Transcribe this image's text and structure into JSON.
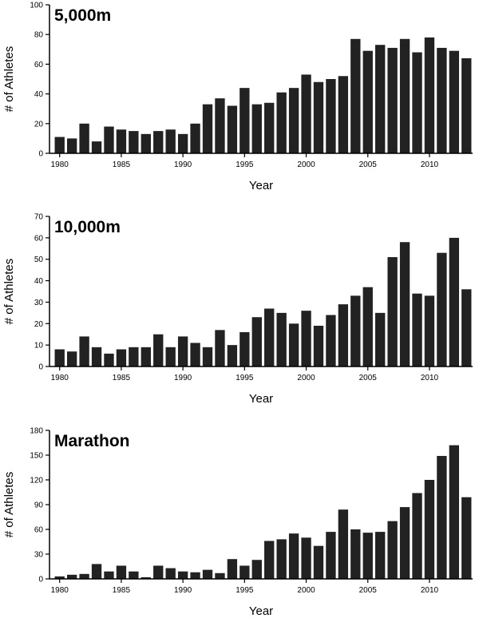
{
  "colors": {
    "bar": "#222222",
    "axis": "#000000",
    "background": "#ffffff"
  },
  "chart_data": [
    {
      "type": "bar",
      "title": "5,000m",
      "xlabel": "Year",
      "ylabel": "# of Athletes",
      "ylim": [
        0,
        100
      ],
      "yticks": [
        0,
        20,
        40,
        60,
        80,
        100
      ],
      "xticks": [
        1980,
        1985,
        1990,
        1995,
        2000,
        2005,
        2010
      ],
      "categories": [
        1980,
        1981,
        1982,
        1983,
        1984,
        1985,
        1986,
        1987,
        1988,
        1989,
        1990,
        1991,
        1992,
        1993,
        1994,
        1995,
        1996,
        1997,
        1998,
        1999,
        2000,
        2001,
        2002,
        2003,
        2004,
        2005,
        2006,
        2007,
        2008,
        2009,
        2010,
        2011,
        2012,
        2013
      ],
      "values": [
        11,
        10,
        20,
        8,
        18,
        16,
        15,
        13,
        15,
        16,
        13,
        20,
        33,
        37,
        32,
        44,
        33,
        34,
        41,
        44,
        53,
        48,
        50,
        52,
        77,
        69,
        73,
        71,
        77,
        68,
        78,
        71,
        69,
        64
      ],
      "grid": false
    },
    {
      "type": "bar",
      "title": "10,000m",
      "xlabel": "Year",
      "ylabel": "# of Athletes",
      "ylim": [
        0,
        70
      ],
      "yticks": [
        0,
        10,
        20,
        30,
        40,
        50,
        60,
        70
      ],
      "xticks": [
        1980,
        1985,
        1990,
        1995,
        2000,
        2005,
        2010
      ],
      "categories": [
        1980,
        1981,
        1982,
        1983,
        1984,
        1985,
        1986,
        1987,
        1988,
        1989,
        1990,
        1991,
        1992,
        1993,
        1994,
        1995,
        1996,
        1997,
        1998,
        1999,
        2000,
        2001,
        2002,
        2003,
        2004,
        2005,
        2006,
        2007,
        2008,
        2009,
        2010,
        2011,
        2012,
        2013
      ],
      "values": [
        8,
        7,
        14,
        9,
        6,
        8,
        9,
        9,
        15,
        9,
        14,
        11,
        9,
        17,
        10,
        16,
        23,
        27,
        25,
        20,
        26,
        19,
        24,
        29,
        33,
        37,
        25,
        51,
        58,
        34,
        33,
        53,
        60,
        36
      ],
      "grid": false
    },
    {
      "type": "bar",
      "title": "Marathon",
      "xlabel": "Year",
      "ylabel": "# of Athletes",
      "ylim": [
        0,
        180
      ],
      "yticks": [
        0,
        30,
        60,
        90,
        120,
        150,
        180
      ],
      "xticks": [
        1980,
        1985,
        1990,
        1995,
        2000,
        2005,
        2010
      ],
      "categories": [
        1980,
        1981,
        1982,
        1983,
        1984,
        1985,
        1986,
        1987,
        1988,
        1989,
        1990,
        1991,
        1992,
        1993,
        1994,
        1995,
        1996,
        1997,
        1998,
        1999,
        2000,
        2001,
        2002,
        2003,
        2004,
        2005,
        2006,
        2007,
        2008,
        2009,
        2010,
        2011,
        2012,
        2013
      ],
      "values": [
        3,
        5,
        6,
        18,
        9,
        16,
        9,
        2,
        16,
        13,
        9,
        8,
        11,
        7,
        24,
        16,
        23,
        46,
        48,
        55,
        50,
        40,
        57,
        84,
        60,
        56,
        57,
        70,
        87,
        104,
        120,
        149,
        162,
        99
      ],
      "grid": false
    }
  ]
}
